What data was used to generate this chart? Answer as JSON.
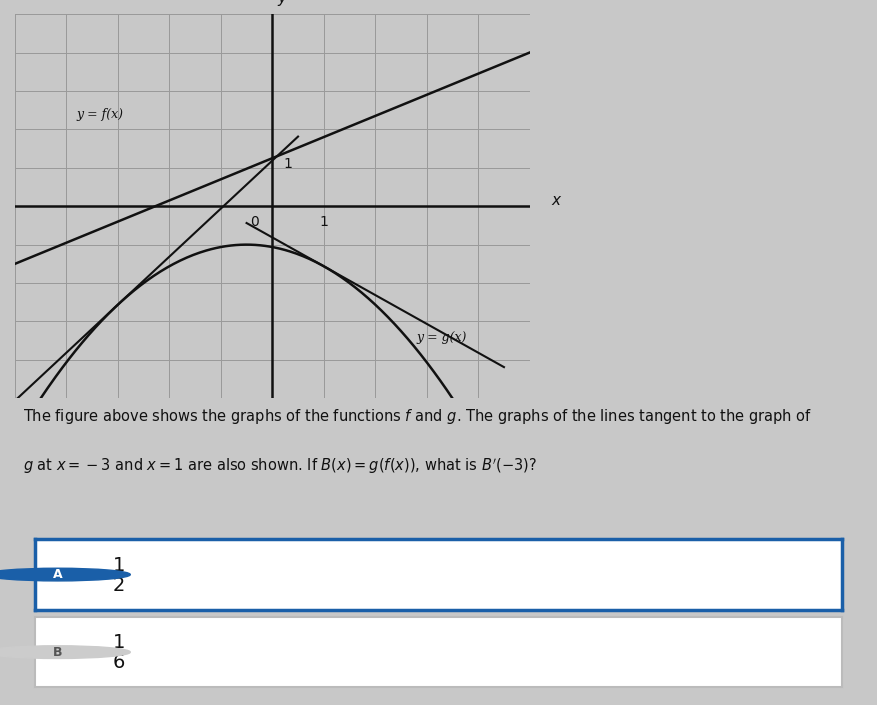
{
  "background_color": "#c8c8c8",
  "graph_bg": "#e8e8e8",
  "xlim": [
    -5,
    5
  ],
  "ylim": [
    -5,
    5
  ],
  "grid_color": "#999999",
  "axis_color": "#111111",
  "curve_color": "#111111",
  "f_label": "y = f(x)",
  "g_label": "y = g(x)",
  "option_A_border": "#1a5fa8",
  "option_A_bg": "#ffffff",
  "option_B_border": "#bbbbbb",
  "option_B_bg": "#ffffff",
  "panel_bg": "#c8c8c8",
  "question_line1": "The figure above shows the graphs of the functions ",
  "question_line2": "g at x = −3 and x = 1 are also shown. If B(x) = g(f(x)) , what is B′(−3) ?"
}
